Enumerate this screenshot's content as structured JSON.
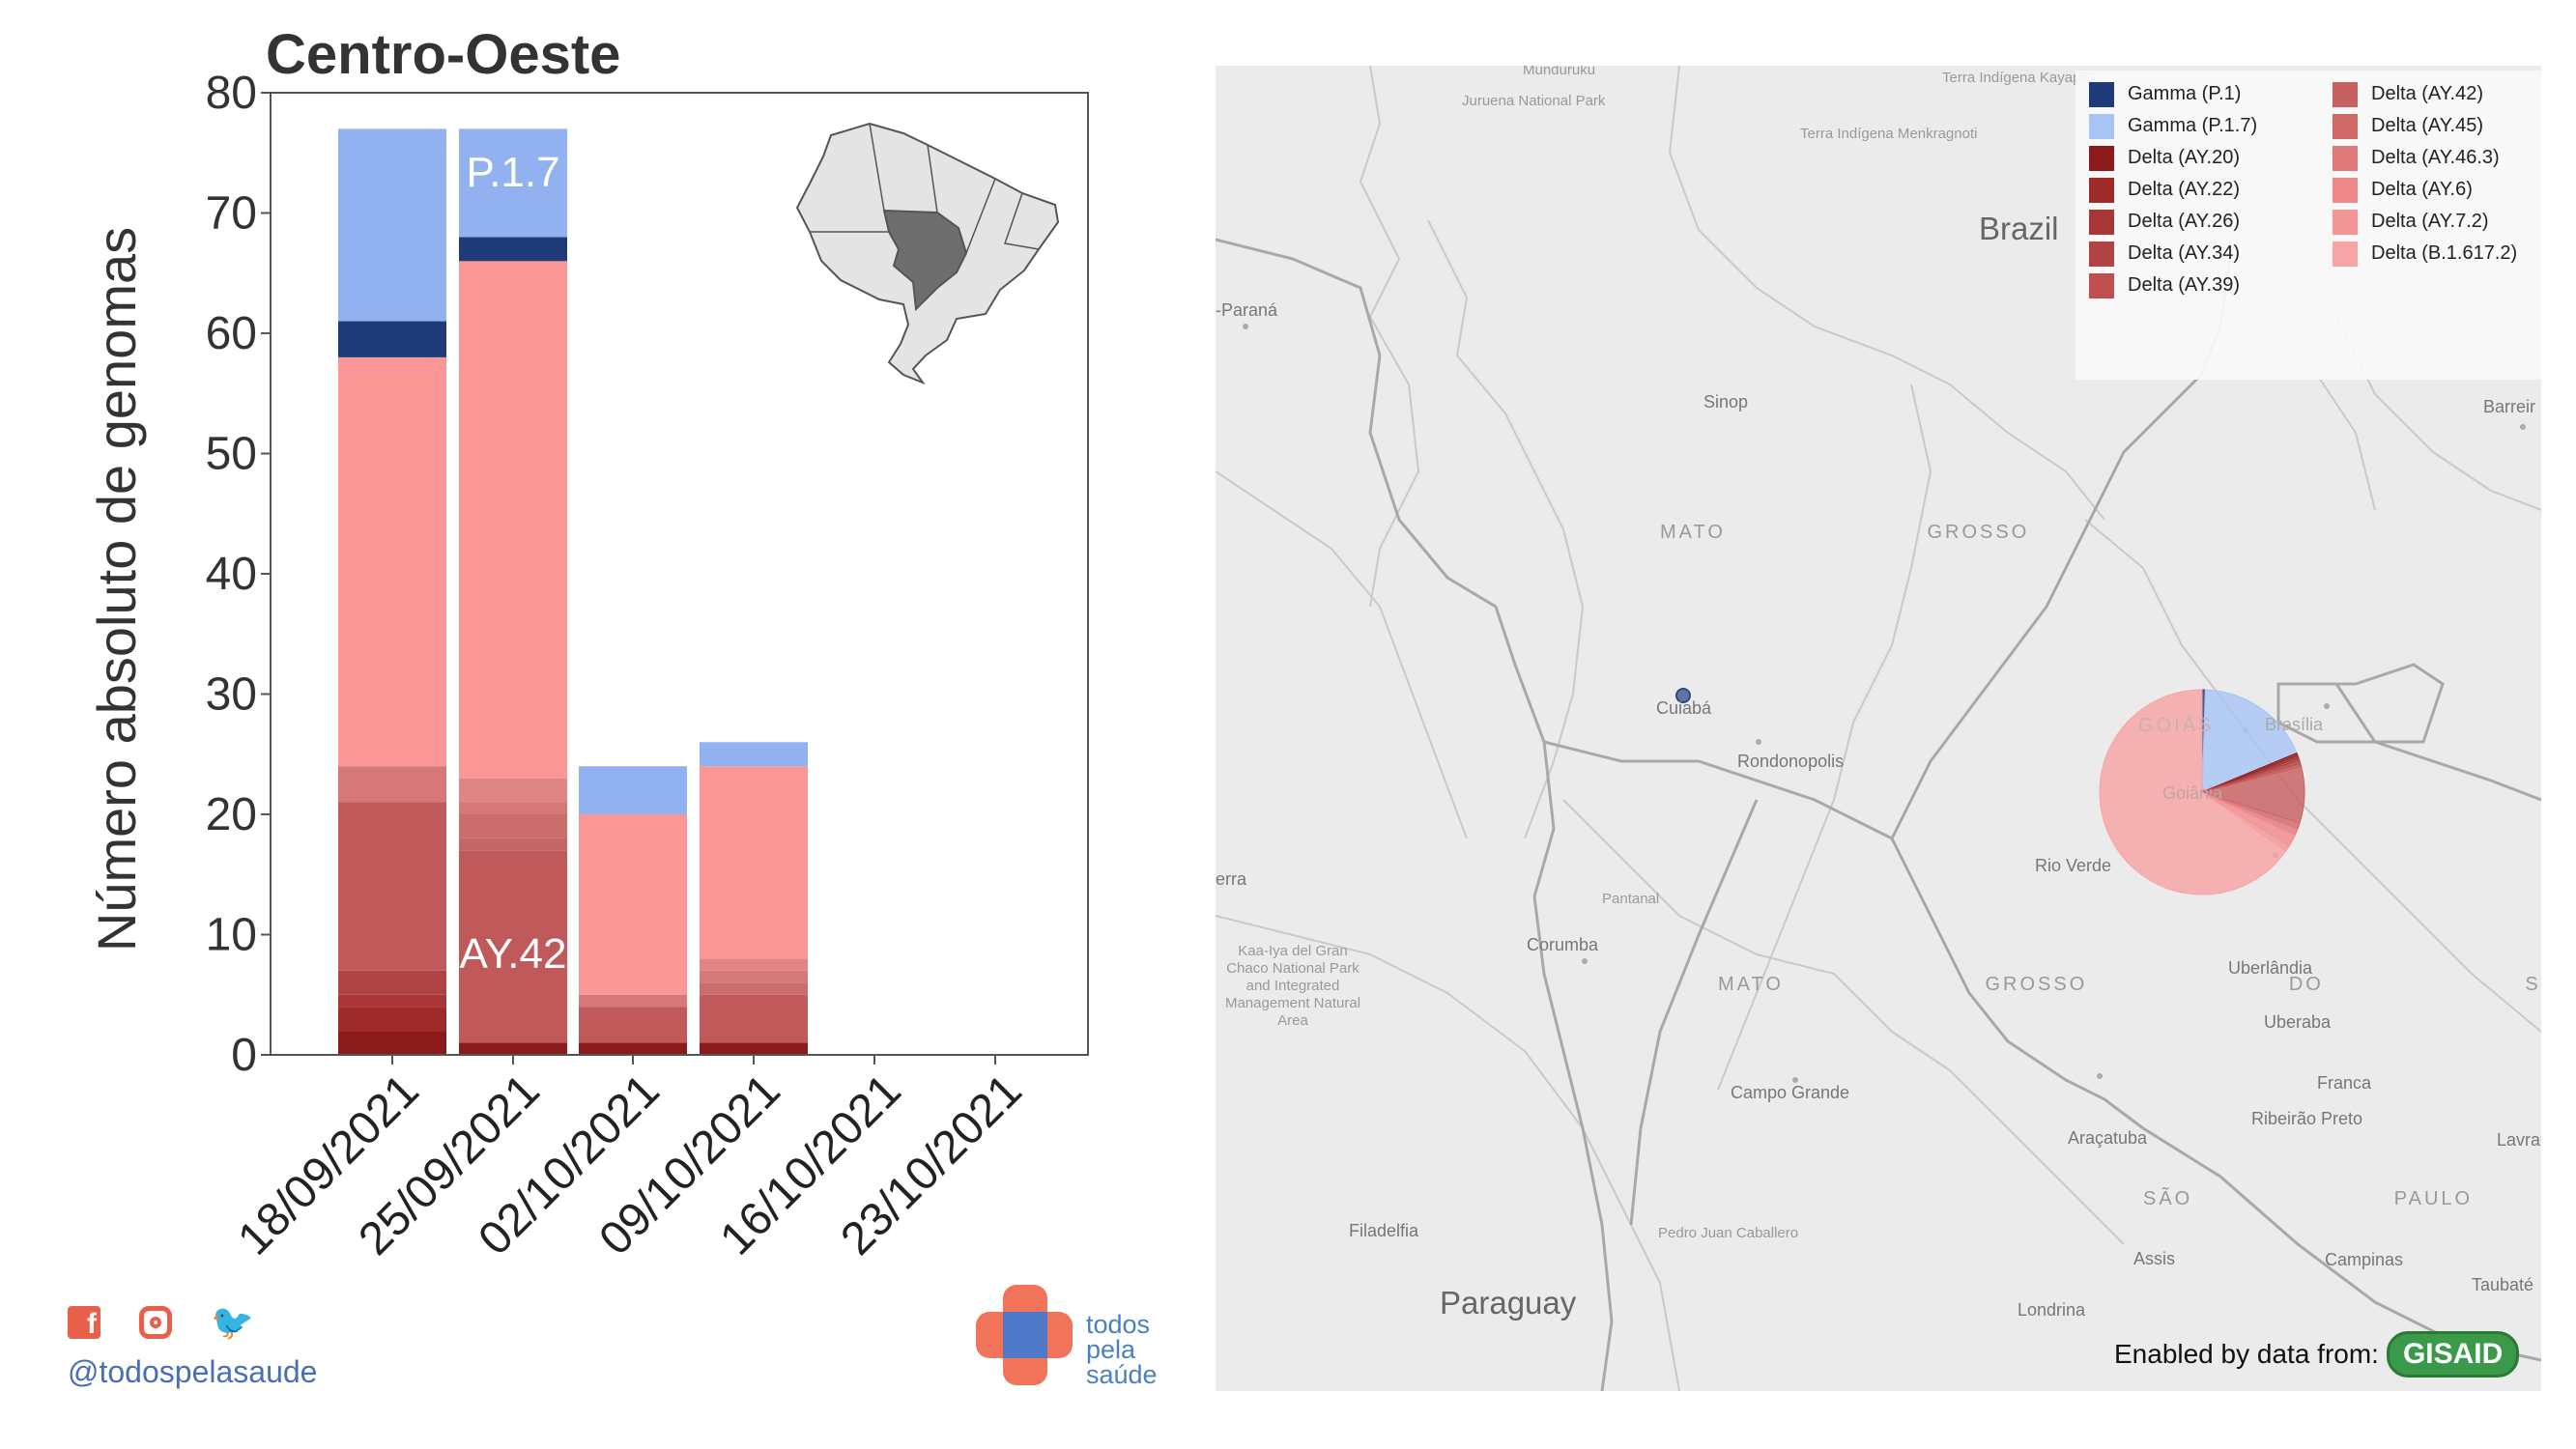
{
  "chart_data": {
    "type": "bar",
    "title": "Centro-Oeste",
    "ylabel": "Número absoluto de genomas",
    "xlabel": "",
    "ylim": [
      0,
      80
    ],
    "yticks": [
      "0",
      "10",
      "20",
      "30",
      "40",
      "50",
      "60",
      "70",
      "80"
    ],
    "categories": [
      "18/09/2021",
      "25/09/2021",
      "02/10/2021",
      "09/10/2021",
      "16/10/2021",
      "23/10/2021"
    ],
    "series": [
      {
        "name": "Delta (AY.20)",
        "color": "#8b1a1a",
        "values": [
          2,
          1,
          1,
          1,
          0,
          0
        ]
      },
      {
        "name": "Delta (AY.22)",
        "color": "#9e2a2a",
        "values": [
          2,
          0,
          0,
          0,
          0,
          0
        ]
      },
      {
        "name": "Delta (AY.26)",
        "color": "#a83636",
        "values": [
          1,
          0,
          0,
          0,
          0,
          0
        ]
      },
      {
        "name": "Delta (AY.34)",
        "color": "#b04444",
        "values": [
          2,
          0,
          0,
          0,
          0,
          0
        ]
      },
      {
        "name": "Delta (AY.39)",
        "color": "#b85050",
        "values": [
          0,
          0,
          0,
          0,
          0,
          0
        ]
      },
      {
        "name": "Delta (AY.42)",
        "color": "#c05a5a",
        "values": [
          14,
          16,
          3,
          4,
          0,
          0
        ]
      },
      {
        "name": "Delta (AY.45)",
        "color": "#c46666",
        "values": [
          0,
          1,
          0,
          0,
          0,
          0
        ]
      },
      {
        "name": "Delta (AY.46.3)",
        "color": "#cc6d6d",
        "values": [
          0,
          2,
          0,
          1,
          0,
          0
        ]
      },
      {
        "name": "Delta (AY.6)",
        "color": "#d67878",
        "values": [
          3,
          1,
          1,
          1,
          0,
          0
        ]
      },
      {
        "name": "Delta (AY.7.2)",
        "color": "#e08585",
        "values": [
          0,
          2,
          0,
          1,
          0,
          0
        ]
      },
      {
        "name": "Delta (B.1.617.2)",
        "color": "#fa9696",
        "values": [
          34,
          43,
          15,
          16,
          0,
          0
        ]
      },
      {
        "name": "Gamma (P.1)",
        "color": "#1e3a78",
        "values": [
          3,
          2,
          0,
          0,
          0,
          0
        ]
      },
      {
        "name": "Gamma (P.1.7)",
        "color": "#92b1f0",
        "values": [
          16,
          9,
          4,
          2,
          0,
          0
        ]
      }
    ],
    "annotations": [
      {
        "text": "P.1.7",
        "category": "25/09/2021",
        "y": 73.5
      },
      {
        "text": "AY.42",
        "category": "25/09/2021",
        "y": 8.5
      }
    ],
    "grid": false,
    "legend": "none"
  },
  "social": {
    "handle": "@todospelasaude",
    "icons": [
      "facebook-icon",
      "instagram-icon",
      "twitter-icon"
    ]
  },
  "brand": {
    "lines": [
      "todos",
      "pela",
      "saúde"
    ],
    "colors": {
      "coral": "#f0735a",
      "blue": "#5078c8"
    }
  },
  "map": {
    "legend": [
      {
        "label": "Gamma (P.1)",
        "color": "#1e3a78"
      },
      {
        "label": "Gamma (P.1.7)",
        "color": "#a8c4f5"
      },
      {
        "label": "Delta (AY.20)",
        "color": "#8b1a1a"
      },
      {
        "label": "Delta (AY.22)",
        "color": "#9e2a2a"
      },
      {
        "label": "Delta (AY.26)",
        "color": "#a83636"
      },
      {
        "label": "Delta (AY.34)",
        "color": "#b04444"
      },
      {
        "label": "Delta (AY.39)",
        "color": "#c05050"
      },
      {
        "label": "Delta (AY.42)",
        "color": "#c86060"
      },
      {
        "label": "Delta (AY.45)",
        "color": "#d06868"
      },
      {
        "label": "Delta (AY.46.3)",
        "color": "#e07a7a"
      },
      {
        "label": "Delta (AY.6)",
        "color": "#f08a8a"
      },
      {
        "label": "Delta (AY.7.2)",
        "color": "#f29595"
      },
      {
        "label": "Delta (B.1.617.2)",
        "color": "#f6a4a4"
      }
    ],
    "places": {
      "brazil": "Brazil",
      "paraguay": "Paraguay",
      "mato_grosso": "MATO GROSSO",
      "mato_grosso_do_sul": "MATO GROSSO DO SUL",
      "goias": "GOIÁS",
      "sao_paulo": "SÃO PAULO",
      "munduruku": "Munduruku",
      "juruena": "Juruena National Park",
      "kayapo": "Terra Indígena Kayapó",
      "menkragnoti": "Terra Indígena Menkragnoti",
      "parana": "-Paraná",
      "sinop": "Sinop",
      "barreiras": "Barreir",
      "cuiaba": "Cuiabá",
      "rondonopolis": "Rondonopolis",
      "brasilia": "Brasília",
      "goiania": "Goiânia",
      "rio_verde": "Rio Verde",
      "erra": "erra",
      "pantanal": "Pantanal",
      "corumba": "Corumba",
      "kaa_iya": "Kaa-Iya del Gran Chaco National Park and Integrated Management Natural Area",
      "uberlandia": "Uberlândia",
      "uberaba": "Uberaba",
      "campo_grande": "Campo Grande",
      "franca": "Franca",
      "ribeirao_preto": "Ribeirão Preto",
      "aracatuba": "Araçatuba",
      "lavra": "Lavra",
      "filadelfia": "Filadelfia",
      "pedro_juan": "Pedro Juan Caballero",
      "assis": "Assis",
      "campinas": "Campinas",
      "taubate": "Taubaté",
      "londrina": "Londrina"
    },
    "pie": {
      "values": [
        0.5,
        18.5,
        0.4,
        0.4,
        0.4,
        0.5,
        0.5,
        9,
        1,
        1,
        2,
        1,
        66
      ],
      "colors": [
        "#1e3a78",
        "#a8c4f5",
        "#8b1a1a",
        "#9e2a2a",
        "#a83636",
        "#b04444",
        "#c05050",
        "#c86060",
        "#d06868",
        "#e07a7a",
        "#f08a8a",
        "#f29595",
        "#f6a4a4"
      ]
    },
    "attribution": "Enabled by data from:",
    "attribution_badge": "GISAID"
  }
}
